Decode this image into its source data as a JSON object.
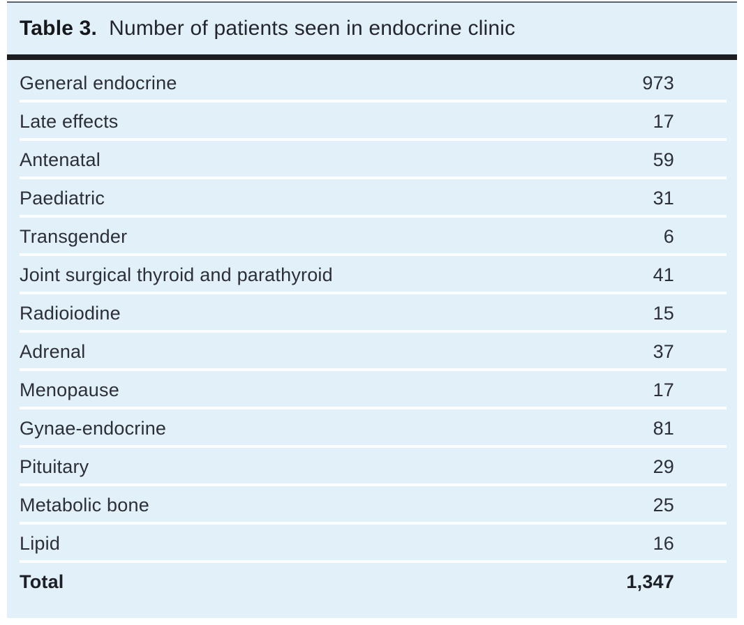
{
  "table": {
    "title_label": "Table 3.",
    "title_text": "Number of patients seen in endocrine clinic",
    "rows": [
      {
        "label": "General endocrine",
        "value": "973"
      },
      {
        "label": "Late effects",
        "value": "17"
      },
      {
        "label": "Antenatal",
        "value": "59"
      },
      {
        "label": "Paediatric",
        "value": "31"
      },
      {
        "label": "Transgender",
        "value": "6"
      },
      {
        "label": "Joint surgical thyroid and parathyroid",
        "value": "41"
      },
      {
        "label": "Radioiodine",
        "value": "15"
      },
      {
        "label": "Adrenal",
        "value": "37"
      },
      {
        "label": "Menopause",
        "value": "17"
      },
      {
        "label": "Gynae-endocrine",
        "value": "81"
      },
      {
        "label": "Pituitary",
        "value": "29"
      },
      {
        "label": "Metabolic bone",
        "value": "25"
      },
      {
        "label": "Lipid",
        "value": "16"
      }
    ],
    "total": {
      "label": "Total",
      "value": "1,347"
    }
  },
  "colors": {
    "panel_bg": "#e2f0f9",
    "title_rule": "#1d1d21",
    "separator": "#fbfdfe",
    "text": "#2c2f37"
  }
}
